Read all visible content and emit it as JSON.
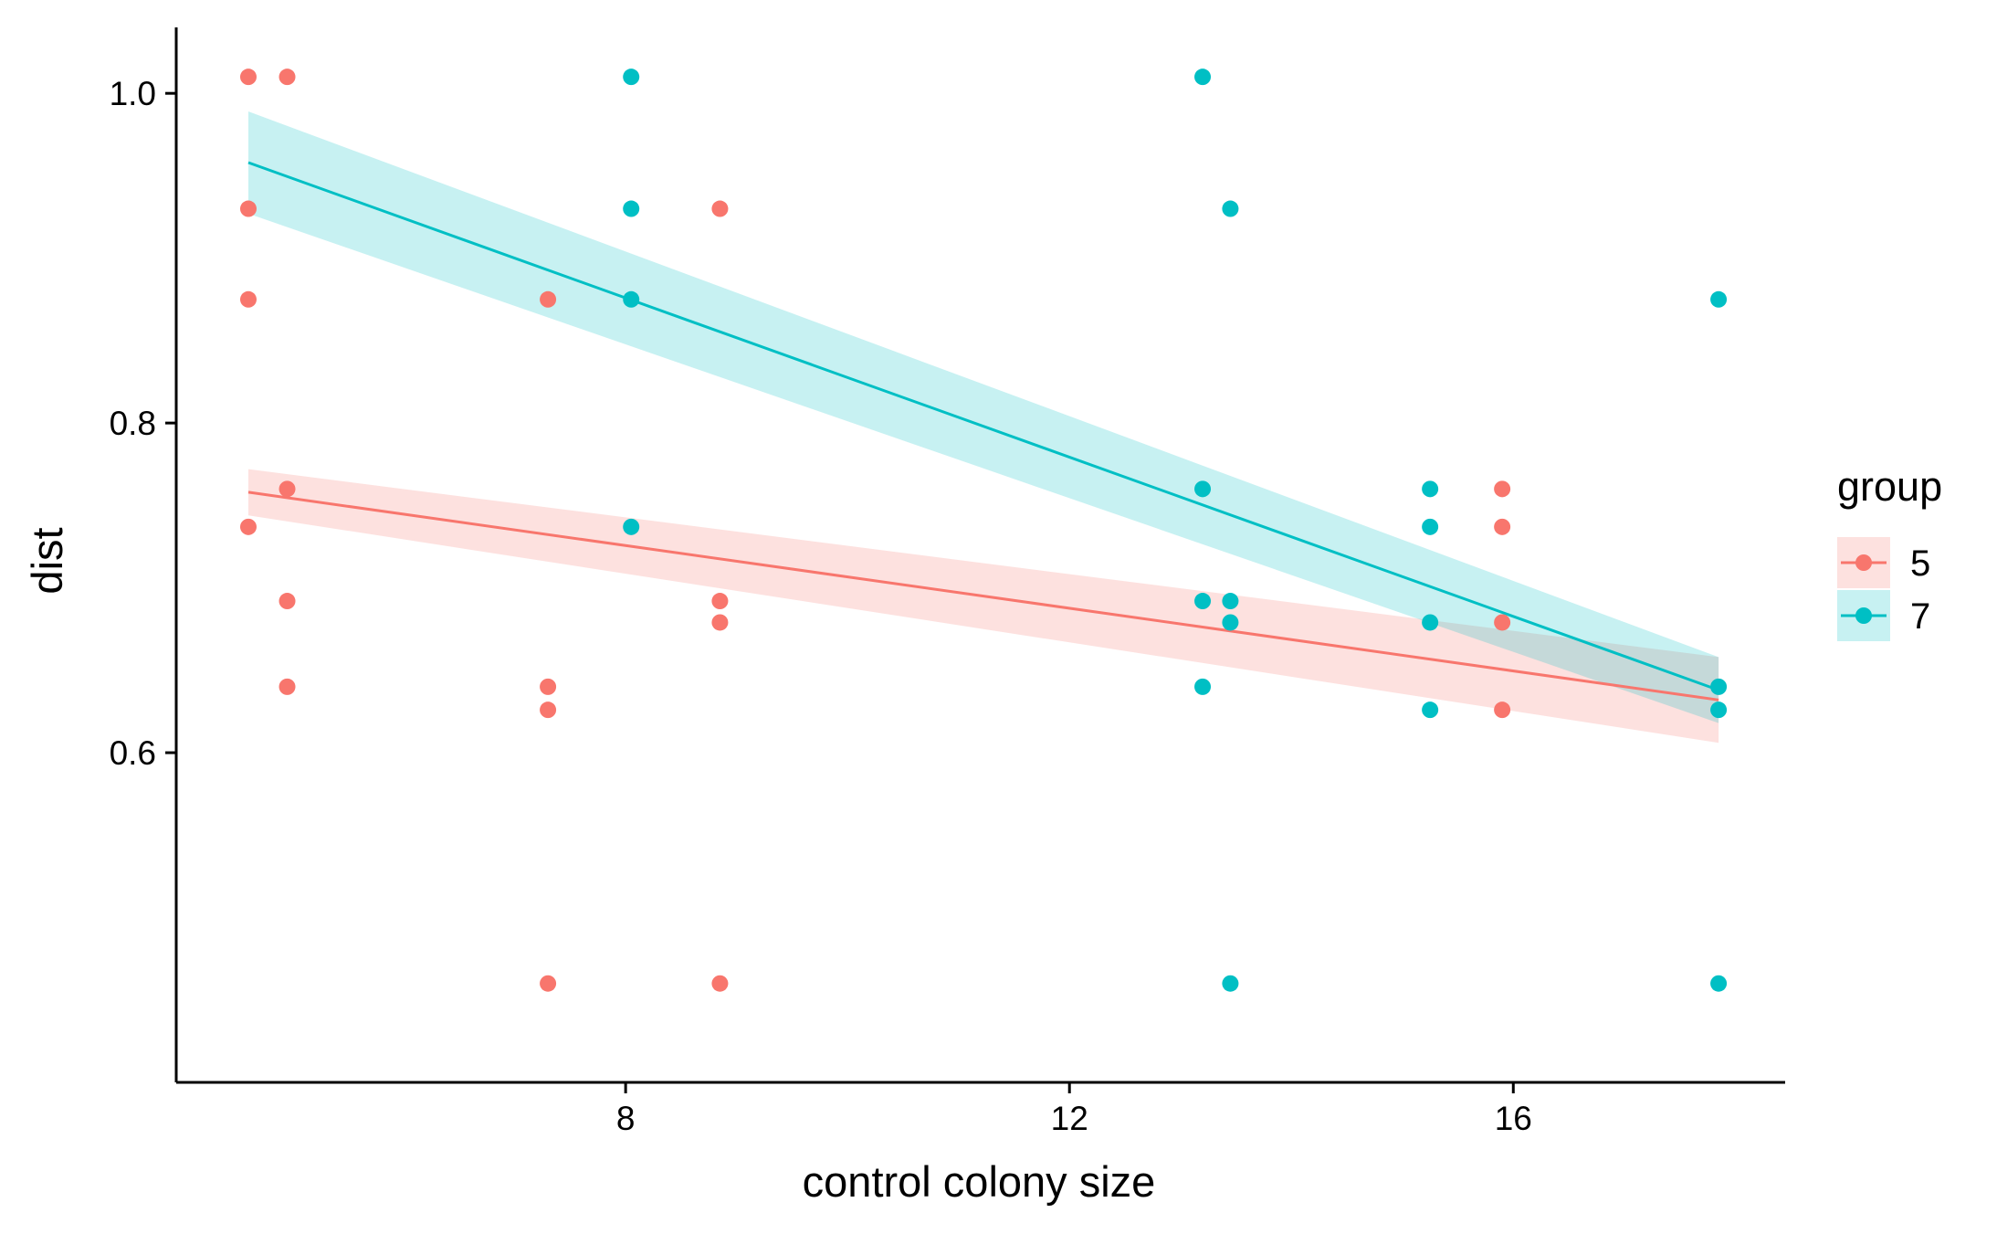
{
  "chart_data": {
    "type": "scatter",
    "title": "",
    "xlabel": "control colony size",
    "ylabel": "dist",
    "xlim": [
      3.95,
      18.45
    ],
    "ylim": [
      0.4,
      1.04
    ],
    "x_ticks": [
      8,
      12,
      16
    ],
    "x_tick_labels": [
      "8",
      "12",
      "16"
    ],
    "y_ticks": [
      0.6,
      0.8,
      1.0
    ],
    "y_tick_labels": [
      "0.6",
      "0.8",
      "1.0"
    ],
    "grid": false,
    "legend": {
      "title": "group",
      "placement": "right"
    },
    "series": [
      {
        "name": "5",
        "color": "#F8766D",
        "points": [
          [
            4.6,
            1.01
          ],
          [
            4.95,
            1.01
          ],
          [
            4.6,
            0.93
          ],
          [
            4.6,
            0.875
          ],
          [
            4.6,
            0.737
          ],
          [
            4.95,
            0.76
          ],
          [
            4.95,
            0.692
          ],
          [
            4.95,
            0.64
          ],
          [
            7.3,
            0.875
          ],
          [
            7.3,
            0.64
          ],
          [
            7.3,
            0.626
          ],
          [
            7.3,
            0.46
          ],
          [
            8.85,
            0.93
          ],
          [
            8.85,
            0.692
          ],
          [
            8.85,
            0.679
          ],
          [
            8.85,
            0.46
          ],
          [
            15.9,
            0.76
          ],
          [
            15.9,
            0.737
          ],
          [
            15.9,
            0.679
          ],
          [
            15.9,
            0.626
          ]
        ],
        "fit": {
          "x": [
            4.6,
            17.85
          ],
          "y": [
            0.758,
            0.632
          ]
        },
        "band": {
          "x": [
            4.6,
            17.85
          ],
          "lower": [
            0.744,
            0.606
          ],
          "upper": [
            0.772,
            0.658
          ]
        }
      },
      {
        "name": "7",
        "color": "#00BFC4",
        "points": [
          [
            8.05,
            1.01
          ],
          [
            8.05,
            0.93
          ],
          [
            8.05,
            0.875
          ],
          [
            8.05,
            0.737
          ],
          [
            13.2,
            1.01
          ],
          [
            13.45,
            0.93
          ],
          [
            13.2,
            0.76
          ],
          [
            13.2,
            0.692
          ],
          [
            13.45,
            0.692
          ],
          [
            13.45,
            0.679
          ],
          [
            13.2,
            0.64
          ],
          [
            13.45,
            0.46
          ],
          [
            15.25,
            0.76
          ],
          [
            15.25,
            0.737
          ],
          [
            15.25,
            0.679
          ],
          [
            15.25,
            0.626
          ],
          [
            17.85,
            0.875
          ],
          [
            17.85,
            0.64
          ],
          [
            17.85,
            0.626
          ],
          [
            17.85,
            0.46
          ]
        ],
        "fit": {
          "x": [
            4.6,
            17.85
          ],
          "y": [
            0.958,
            0.638
          ]
        },
        "band": {
          "x": [
            4.6,
            17.85
          ],
          "lower": [
            0.927,
            0.618
          ],
          "upper": [
            0.989,
            0.658
          ]
        }
      }
    ]
  }
}
